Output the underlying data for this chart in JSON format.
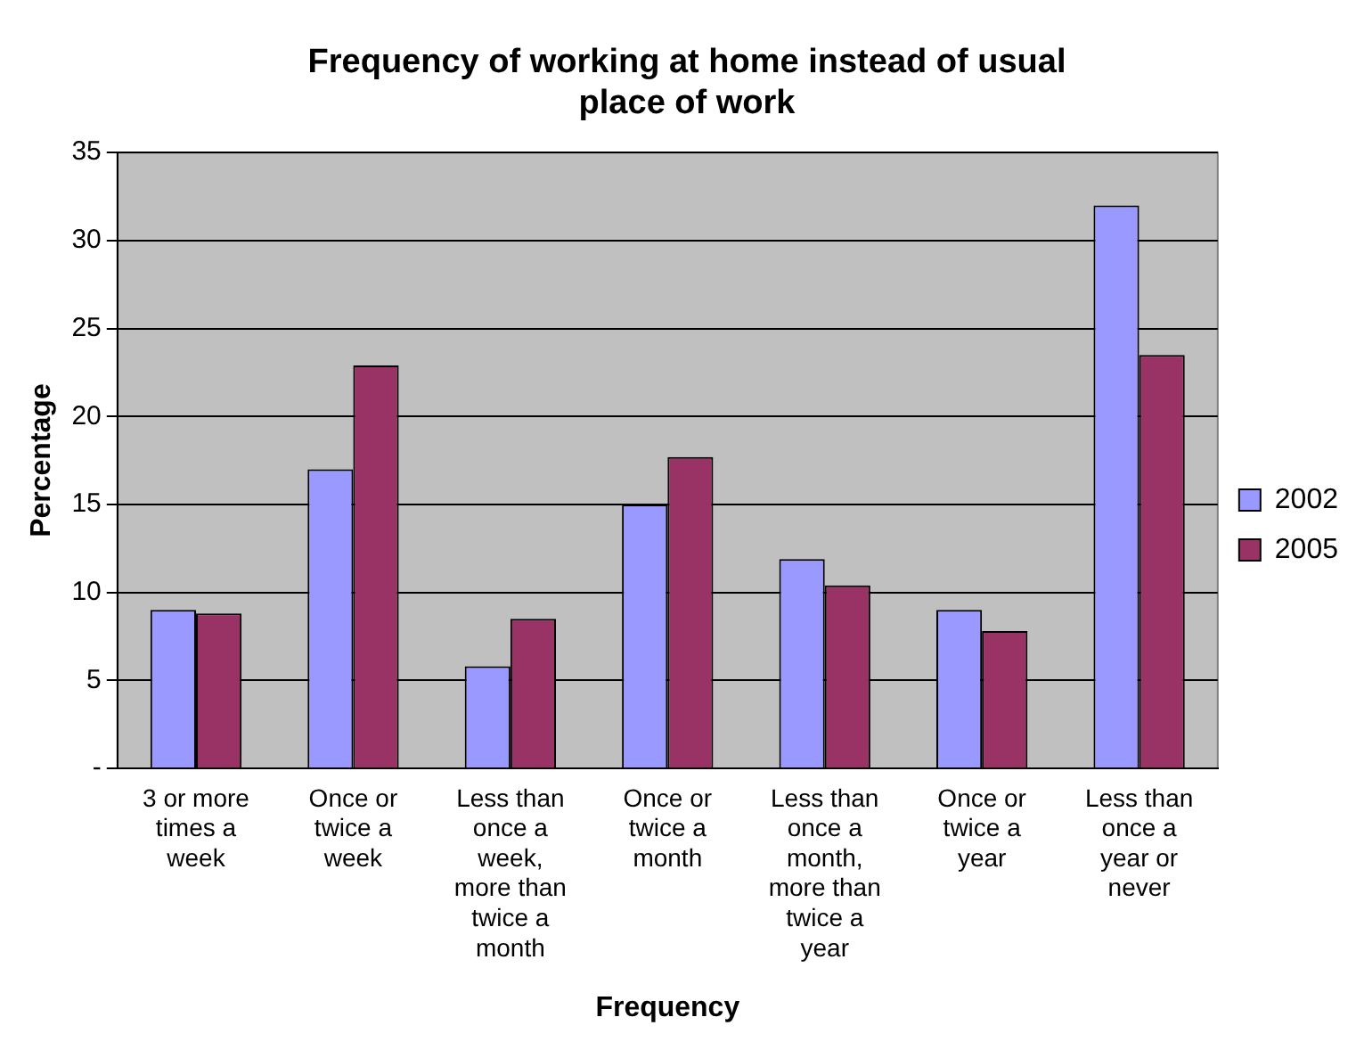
{
  "chart_data": {
    "type": "bar",
    "title": "Frequency of working at home instead of usual place of work",
    "xlabel": "Frequency",
    "ylabel": "Percentage",
    "categories": [
      "3 or more times a week",
      "Once or twice a week",
      "Less than once a week, more than twice a month",
      "Once or twice a month",
      "Less than once a month, more than twice a year",
      "Once or twice a year",
      "Less than once a year or never"
    ],
    "series": [
      {
        "name": "2002",
        "color": "#9999ff",
        "values": [
          9,
          17,
          5.8,
          15,
          11.9,
          9,
          32
        ]
      },
      {
        "name": "2005",
        "color": "#993366",
        "values": [
          8.8,
          22.9,
          8.5,
          17.7,
          10.4,
          7.8,
          23.5
        ]
      }
    ],
    "ylim": [
      0,
      35
    ],
    "yticks": [
      {
        "value": 0,
        "label": "-"
      },
      5,
      10,
      15,
      20,
      25,
      30,
      35
    ],
    "grid": "y",
    "legend": "right"
  }
}
